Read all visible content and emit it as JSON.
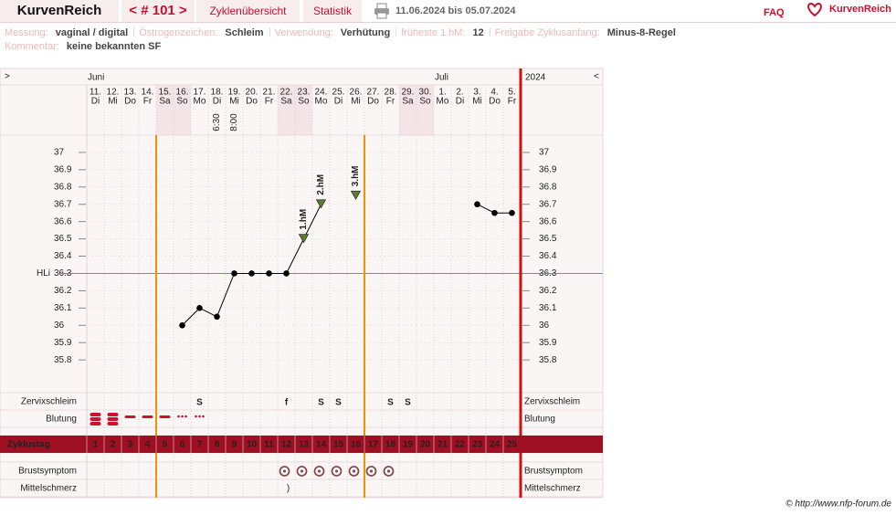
{
  "header": {
    "app_title": "KurvenReich",
    "cycle_nav": "< # 101 >",
    "tabs": [
      "Zyklenübersicht",
      "Statistik"
    ],
    "date_range": "11.06.2024 bis 05.07.2024",
    "faq": "FAQ",
    "logo": "KurvenReich"
  },
  "info": {
    "items": [
      {
        "label": "Messung:",
        "value": "vaginal / digital"
      },
      {
        "label": "Östrogenzeichen:",
        "value": "Schleim"
      },
      {
        "label": "Verwendung:",
        "value": "Verhütung"
      },
      {
        "label": "früheste 1.hM:",
        "value": 12
      },
      {
        "label": "Freigabe Zyklusanfang:",
        "value": "Minus-8-Regel"
      }
    ],
    "comment": {
      "label": "Kommentar:",
      "value": "keine bekannten SF"
    }
  },
  "chart_data": {
    "type": "line",
    "nav_left": ">",
    "nav_right": "<",
    "year": "2024",
    "month_labels": [
      "Juni",
      null,
      null,
      null,
      null,
      null,
      null,
      null,
      null,
      null,
      null,
      null,
      null,
      null,
      null,
      null,
      null,
      null,
      null,
      null,
      "Juli",
      null,
      null,
      null,
      null
    ],
    "categories": [
      "11.",
      "12.",
      "13.",
      "14.",
      "15.",
      "16.",
      "17.",
      "18.",
      "19.",
      "20.",
      "21.",
      "22.",
      "23.",
      "24.",
      "25.",
      "26.",
      "27.",
      "28.",
      "29.",
      "30.",
      "1.",
      "2.",
      "3.",
      "4.",
      "5."
    ],
    "weekdays": [
      "Di",
      "Mi",
      "Do",
      "Fr",
      "Sa",
      "So",
      "Mo",
      "Di",
      "Mi",
      "Do",
      "Fr",
      "Sa",
      "So",
      "Mo",
      "Di",
      "Mi",
      "Do",
      "Fr",
      "Sa",
      "So",
      "Mo",
      "Di",
      "Mi",
      "Do",
      "Fr"
    ],
    "times": [
      null,
      null,
      null,
      null,
      null,
      null,
      null,
      "6:30",
      "8:00",
      null,
      null,
      null,
      null,
      null,
      null,
      null,
      null,
      null,
      null,
      null,
      null,
      null,
      null,
      null,
      null
    ],
    "values": [
      null,
      null,
      null,
      null,
      null,
      36,
      36.1,
      36.05,
      36.3,
      36.3,
      36.3,
      36.3,
      36.5,
      36.7,
      null,
      36.75,
      null,
      null,
      null,
      null,
      null,
      null,
      36.7,
      36.65,
      36.65
    ],
    "color": "#000000",
    "peak_labels": [
      null,
      null,
      null,
      null,
      null,
      null,
      null,
      null,
      null,
      null,
      null,
      null,
      "1.hM",
      "2.hM",
      null,
      "3.hM",
      null,
      null,
      null,
      null,
      null,
      null,
      null,
      null,
      null
    ],
    "peak_color": "#5b7f2a",
    "ylim": [
      35.6,
      37.1
    ],
    "yticks": [
      35.8,
      35.9,
      36,
      36.1,
      36.2,
      36.3,
      36.4,
      36.5,
      36.6,
      36.7,
      36.8,
      36.9,
      37
    ],
    "grid": true,
    "coverline": {
      "label": "HLi",
      "value": 36.3,
      "color": "#7a9a4a"
    },
    "cervical_mucus": {
      "label": "Zervixschleim",
      "values": [
        null,
        null,
        null,
        null,
        null,
        null,
        "S",
        null,
        null,
        null,
        null,
        "f",
        null,
        "S",
        "S",
        null,
        null,
        "S",
        "S",
        null,
        null,
        null,
        null,
        null,
        null
      ]
    },
    "bleeding": {
      "label": "Blutung",
      "values": [
        3,
        3,
        2,
        2,
        2,
        1,
        1,
        null,
        null,
        null,
        null,
        null,
        null,
        null,
        null,
        null,
        null,
        null,
        null,
        null,
        null,
        null,
        null,
        null,
        null
      ]
    },
    "cycle_days": {
      "label": "Zyklustag",
      "values": [
        1,
        2,
        3,
        4,
        5,
        6,
        7,
        8,
        9,
        10,
        11,
        12,
        13,
        14,
        15,
        16,
        17,
        18,
        19,
        20,
        21,
        22,
        23,
        24,
        25
      ],
      "colors": [
        "#ffffff",
        "#ffffff",
        "#ffffff",
        "#ffffff",
        "#f39200",
        "#f39200",
        "#f39200",
        "#f39200",
        "#f39200",
        "#f39200",
        "#f39200",
        "#f39200",
        "#f39200",
        "#f39200",
        "#f39200",
        "#f39200",
        "#ffffff",
        "#ffffff",
        "#ffffff",
        "#ffffff",
        "#ffffff",
        "#ffffff",
        "#ffffff",
        "#ffffff",
        "#ffffff"
      ]
    },
    "breast_symptom": {
      "label": "Brustsymptom",
      "values": [
        null,
        null,
        null,
        null,
        null,
        null,
        null,
        null,
        null,
        null,
        null,
        1,
        1,
        1,
        1,
        1,
        1,
        1,
        null,
        null,
        null,
        null,
        null,
        null,
        null
      ]
    },
    "mittelschmerz": {
      "label": "Mittelschmerz",
      "values": [
        null,
        null,
        null,
        null,
        null,
        null,
        null,
        null,
        null,
        null,
        null,
        ")",
        null,
        null,
        null,
        null,
        null,
        null,
        null,
        null,
        null,
        null,
        null,
        null,
        null
      ]
    }
  },
  "footer": "© http://www.nfp-forum.de"
}
